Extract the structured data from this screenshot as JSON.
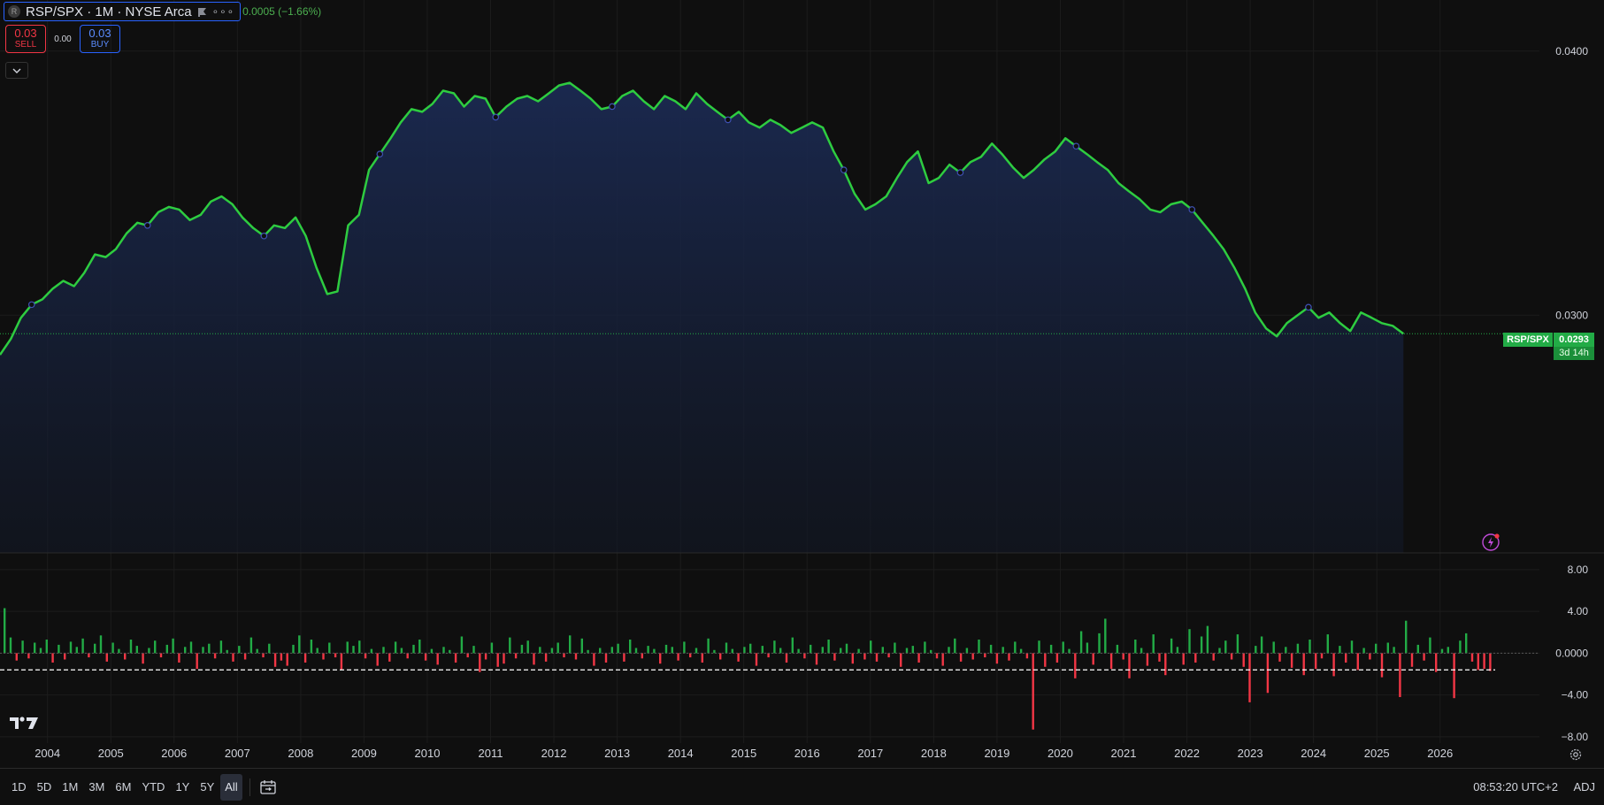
{
  "header": {
    "symbol_title": "RSP/SPX · 1M · NYSE Arca",
    "logo_letter": "R",
    "change_text": "0.0005 (−1.66%)"
  },
  "trade": {
    "sell_value": "0.03",
    "sell_label": "SELL",
    "spread": "0.00",
    "buy_value": "0.03",
    "buy_label": "BUY"
  },
  "price_tag": {
    "symbol": "RSP/SPX",
    "value": "0.0293",
    "countdown": "3d 14h"
  },
  "bottom_bar": {
    "ranges": [
      "1D",
      "5D",
      "1M",
      "3M",
      "6M",
      "YTD",
      "1Y",
      "5Y",
      "All"
    ],
    "active_range": "All",
    "clock": "08:53:20 UTC+2",
    "adj_label": "ADJ"
  },
  "icons": [
    "tradingview-logo",
    "flag-icon",
    "more-icon",
    "chevron-down-icon",
    "calendar-range-icon",
    "gear-icon",
    "flash-icon"
  ],
  "colors": {
    "line": "#2ecc40",
    "up": "#22ab46",
    "down": "#f23645",
    "accent": "#2962ff",
    "area": "#1b2a52"
  },
  "chart_data": [
    {
      "type": "area",
      "series": [
        {
          "name": "RSP/SPX",
          "x": [
            2003.25,
            2003.42,
            2003.58,
            2003.75,
            2003.92,
            2004.08,
            2004.25,
            2004.42,
            2004.58,
            2004.75,
            2004.92,
            2005.08,
            2005.25,
            2005.42,
            2005.58,
            2005.75,
            2005.92,
            2006.08,
            2006.25,
            2006.42,
            2006.58,
            2006.75,
            2006.92,
            2007.08,
            2007.25,
            2007.42,
            2007.58,
            2007.75,
            2007.92,
            2008.08,
            2008.25,
            2008.42,
            2008.58,
            2008.75,
            2008.92,
            2009.08,
            2009.25,
            2009.42,
            2009.58,
            2009.75,
            2009.92,
            2010.08,
            2010.25,
            2010.42,
            2010.58,
            2010.75,
            2010.92,
            2011.08,
            2011.25,
            2011.42,
            2011.58,
            2011.75,
            2011.92,
            2012.08,
            2012.25,
            2012.42,
            2012.58,
            2012.75,
            2012.92,
            2013.08,
            2013.25,
            2013.42,
            2013.58,
            2013.75,
            2013.92,
            2014.08,
            2014.25,
            2014.42,
            2014.58,
            2014.75,
            2014.92,
            2015.08,
            2015.25,
            2015.42,
            2015.58,
            2015.75,
            2015.92,
            2016.08,
            2016.25,
            2016.42,
            2016.58,
            2016.75,
            2016.92,
            2017.08,
            2017.25,
            2017.42,
            2017.58,
            2017.75,
            2017.92,
            2018.08,
            2018.25,
            2018.42,
            2018.58,
            2018.75,
            2018.92,
            2019.08,
            2019.25,
            2019.42,
            2019.58,
            2019.75,
            2019.92,
            2020.08,
            2020.25,
            2020.42,
            2020.58,
            2020.75,
            2020.92,
            2021.08,
            2021.25,
            2021.42,
            2021.58,
            2021.75,
            2021.92,
            2022.08,
            2022.25,
            2022.42,
            2022.58,
            2022.75,
            2022.92,
            2023.08,
            2023.25,
            2023.42,
            2023.58,
            2023.75,
            2023.92,
            2024.08,
            2024.25,
            2024.42,
            2024.58,
            2024.75,
            2024.92,
            2025.08,
            2025.25,
            2025.42
          ],
          "values": [
            0.0285,
            0.0291,
            0.0299,
            0.0304,
            0.0306,
            0.031,
            0.0313,
            0.0311,
            0.0316,
            0.0323,
            0.0322,
            0.0325,
            0.0331,
            0.0335,
            0.0334,
            0.0339,
            0.0341,
            0.034,
            0.0336,
            0.0338,
            0.0343,
            0.0345,
            0.0342,
            0.0337,
            0.0333,
            0.033,
            0.0334,
            0.0333,
            0.0337,
            0.033,
            0.0318,
            0.0308,
            0.0309,
            0.0334,
            0.0338,
            0.0355,
            0.0361,
            0.0367,
            0.0373,
            0.0378,
            0.0377,
            0.038,
            0.0385,
            0.0384,
            0.0379,
            0.0383,
            0.0382,
            0.0375,
            0.0379,
            0.0382,
            0.0383,
            0.0381,
            0.0384,
            0.0387,
            0.0388,
            0.0385,
            0.0382,
            0.0378,
            0.0379,
            0.0383,
            0.0385,
            0.0381,
            0.0378,
            0.0383,
            0.0381,
            0.0378,
            0.0384,
            0.038,
            0.0377,
            0.0374,
            0.0377,
            0.0373,
            0.0371,
            0.0374,
            0.0372,
            0.0369,
            0.0371,
            0.0373,
            0.0371,
            0.0362,
            0.0355,
            0.0346,
            0.034,
            0.0342,
            0.0345,
            0.0352,
            0.0358,
            0.0362,
            0.035,
            0.0352,
            0.0357,
            0.0354,
            0.0358,
            0.036,
            0.0365,
            0.0361,
            0.0356,
            0.0352,
            0.0355,
            0.0359,
            0.0362,
            0.0367,
            0.0364,
            0.0361,
            0.0358,
            0.0355,
            0.035,
            0.0347,
            0.0344,
            0.034,
            0.0339,
            0.0342,
            0.0343,
            0.034,
            0.0335,
            0.033,
            0.0325,
            0.0318,
            0.031,
            0.0301,
            0.0295,
            0.0292,
            0.0297,
            0.03,
            0.0303,
            0.0299,
            0.0301,
            0.0297,
            0.0294,
            0.0301,
            0.0299,
            0.0297,
            0.0296,
            0.0293
          ]
        }
      ],
      "ylabel_ticks": [
        "0.0400",
        "0.0300"
      ],
      "ylim": [
        0.021,
        0.0416
      ],
      "xlim": [
        2003.25,
        2026.8
      ],
      "last_value": 0.0293,
      "fill": "gradient-area",
      "grid": true
    },
    {
      "type": "bar",
      "series": [
        {
          "name": "",
          "values": [
            4.3,
            1.5,
            -0.7,
            1.2,
            -0.5,
            1.0,
            0.5,
            1.3,
            -0.9,
            0.8,
            -0.6,
            1.1,
            0.6,
            1.4,
            -0.4,
            0.9,
            1.7,
            -0.8,
            1.0,
            0.4,
            -0.6,
            1.3,
            0.7,
            -1.0,
            0.5,
            1.2,
            -0.4,
            0.8,
            1.4,
            -0.9,
            0.6,
            1.1,
            -1.5,
            0.6,
            0.9,
            -0.5,
            1.2,
            0.3,
            -0.8,
            0.7,
            -0.6,
            1.5,
            0.4,
            -0.4,
            0.9,
            -1.3,
            -0.7,
            -1.2,
            0.8,
            1.7,
            -0.9,
            1.3,
            0.5,
            -0.6,
            1.0,
            -0.4,
            -1.6,
            1.1,
            0.7,
            1.2,
            -0.5,
            0.4,
            -1.2,
            0.6,
            -0.8,
            1.1,
            0.5,
            -0.5,
            0.8,
            1.3,
            -0.7,
            0.4,
            -1.1,
            0.6,
            0.3,
            -0.9,
            1.6,
            -0.4,
            0.7,
            -1.8,
            -0.6,
            1.0,
            -1.3,
            -1.0,
            1.5,
            -0.5,
            0.8,
            1.2,
            -1.1,
            0.6,
            -0.8,
            0.5,
            1.0,
            -0.4,
            1.7,
            -0.6,
            1.4,
            0.3,
            -1.2,
            0.5,
            -0.9,
            0.6,
            0.9,
            -0.8,
            1.3,
            0.5,
            -0.5,
            0.7,
            0.4,
            -1.0,
            0.8,
            0.6,
            -0.7,
            1.1,
            -0.4,
            0.5,
            -0.9,
            1.4,
            0.3,
            -0.6,
            1.0,
            0.4,
            -0.8,
            0.6,
            0.9,
            -1.2,
            0.7,
            -0.4,
            1.2,
            0.5,
            -0.9,
            1.5,
            0.4,
            -0.5,
            0.8,
            -1.1,
            0.6,
            1.3,
            -0.7,
            0.5,
            0.9,
            -1.0,
            0.4,
            -0.6,
            1.2,
            -0.8,
            0.6,
            -0.4,
            1.0,
            -1.3,
            0.5,
            0.7,
            -0.9,
            1.1,
            0.3,
            -0.5,
            -1.2,
            0.6,
            1.4,
            -0.8,
            0.5,
            -0.6,
            1.3,
            -0.4,
            0.8,
            -1.0,
            0.6,
            -0.7,
            1.1,
            0.4,
            -0.5,
            -7.3,
            1.2,
            -1.3,
            0.8,
            -0.9,
            1.1,
            0.4,
            -2.4,
            2.1,
            1.0,
            -1.1,
            1.9,
            3.3,
            -1.5,
            0.8,
            -0.6,
            -2.4,
            1.3,
            0.5,
            -1.2,
            1.8,
            -0.8,
            -2.1,
            1.4,
            0.6,
            -1.1,
            2.3,
            -0.9,
            1.6,
            2.6,
            -0.7,
            0.5,
            1.2,
            -0.6,
            1.8,
            -1.3,
            -4.7,
            0.7,
            1.6,
            -3.8,
            1.1,
            -0.8,
            0.6,
            -1.4,
            0.9,
            -2.1,
            1.3,
            -1.5,
            -0.5,
            1.8,
            -2.2,
            0.7,
            -0.9,
            1.2,
            -1.6,
            0.5,
            -0.6,
            0.9,
            -2.3,
            1.0,
            0.6,
            -4.2,
            3.1,
            -1.3,
            0.8,
            -0.7,
            1.5,
            -1.8,
            0.4,
            0.6,
            -4.3,
            1.2,
            1.9,
            -0.8,
            -1.6,
            -1.5,
            -1.7
          ],
          "mean_line": -1.6
        }
      ],
      "ylabel_ticks": [
        "8.00",
        "4.00",
        "0.0000",
        "−4.00",
        "−8.00"
      ],
      "ylim": [
        -8.6,
        9.0
      ],
      "x_tick_labels": [
        "2004",
        "2005",
        "2006",
        "2007",
        "2008",
        "2009",
        "2010",
        "2011",
        "2012",
        "2013",
        "2014",
        "2015",
        "2016",
        "2017",
        "2018",
        "2019",
        "2020",
        "2021",
        "2022",
        "2023",
        "2024",
        "2025",
        "2026"
      ],
      "grid": true
    }
  ]
}
